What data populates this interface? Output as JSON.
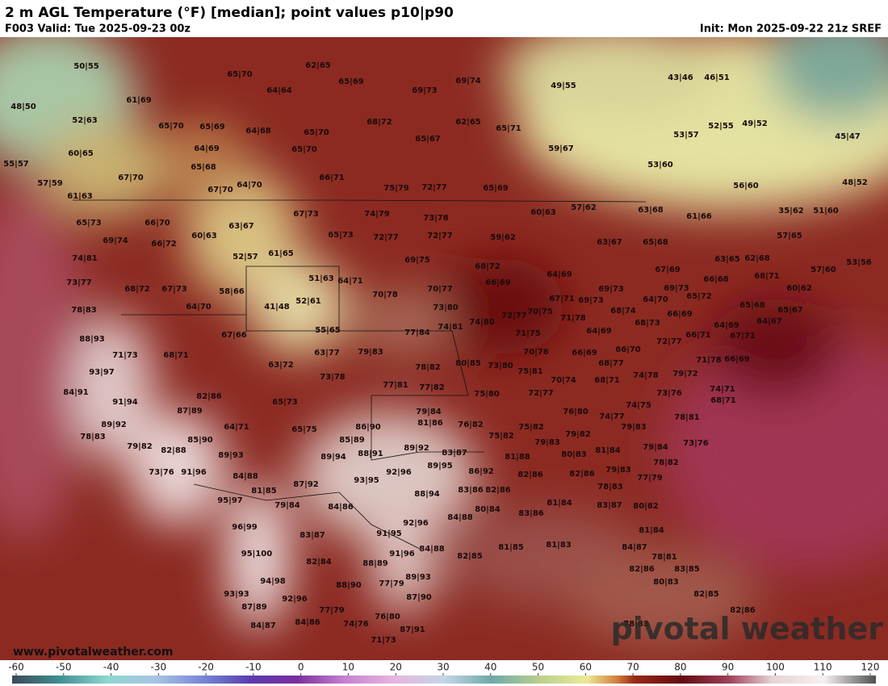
{
  "header": {
    "title": "2 m AGL Temperature (°F) [median]; point values p10|p90",
    "valid": "F003 Valid: Tue 2025-09-23 00z",
    "init": "Init: Mon 2025-09-22 21z SREF"
  },
  "map": {
    "point_values": [
      "50|55",
      "48|50",
      "52|63",
      "60|65",
      "55|57",
      "57|59",
      "61|63",
      "61|69",
      "65|70",
      "62|65",
      "65|69",
      "64|64",
      "69|74",
      "49|55",
      "69|73",
      "65|70",
      "65|69",
      "64|68",
      "65|70",
      "68|72",
      "65|67",
      "62|65",
      "65|71",
      "59|67",
      "43|46",
      "46|51",
      "52|55",
      "49|52",
      "45|47",
      "53|57",
      "53|60",
      "56|60",
      "48|52",
      "64|69",
      "65|70",
      "65|68",
      "67|70",
      "67|70",
      "64|70",
      "66|71",
      "75|79",
      "72|77",
      "65|69",
      "65|73",
      "66|70",
      "63|67",
      "67|73",
      "74|79",
      "73|78",
      "60|63",
      "57|62",
      "63|68",
      "61|66",
      "35|62",
      "51|60",
      "69|74",
      "66|72",
      "60|63",
      "65|73",
      "72|77",
      "72|77",
      "59|62",
      "63|67",
      "65|68",
      "57|65",
      "74|81",
      "52|57",
      "61|65",
      "69|75",
      "68|72",
      "64|69",
      "67|69",
      "63|65",
      "62|68",
      "53|56",
      "57|60",
      "73|77",
      "68|72",
      "67|73",
      "58|66",
      "51|63",
      "64|71",
      "66|69",
      "69|73",
      "69|73",
      "66|68",
      "68|71",
      "60|62",
      "70|78",
      "70|77",
      "67|71",
      "69|73",
      "64|70",
      "65|72",
      "78|83",
      "64|70",
      "41|48",
      "52|61",
      "73|80",
      "68|74",
      "66|69",
      "65|68",
      "65|67",
      "72|77",
      "70|75",
      "71|78",
      "74|80",
      "74|81",
      "55|65",
      "77|84",
      "68|73",
      "64|69",
      "64|67",
      "88|93",
      "67|66",
      "71|75",
      "64|69",
      "66|71",
      "72|77",
      "67|71",
      "71|73",
      "68|71",
      "63|77",
      "79|83",
      "70|76",
      "66|69",
      "66|70",
      "71|78",
      "66|69",
      "63|72",
      "78|82",
      "80|85",
      "73|80",
      "68|77",
      "93|97",
      "73|78",
      "75|81",
      "70|74",
      "68|71",
      "74|78",
      "79|72",
      "74|71",
      "84|91",
      "77|81",
      "77|82",
      "72|77",
      "73|76",
      "75|80",
      "82|86",
      "68|71",
      "91|94",
      "74|75",
      "65|73",
      "87|89",
      "79|84",
      "76|80",
      "74|77",
      "78|81",
      "81|86",
      "76|82",
      "64|71",
      "86|90",
      "75|82",
      "79|83",
      "89|92",
      "65|75",
      "79|82",
      "75|82",
      "79|83",
      "85|89",
      "85|90",
      "78|83",
      "81|84",
      "79|84",
      "73|76",
      "79|82",
      "82|88",
      "89|92",
      "88|91",
      "83|87",
      "89|94",
      "89|93",
      "81|88",
      "80|83",
      "78|82",
      "73|76",
      "91|96",
      "89|95",
      "92|96",
      "86|92",
      "82|86",
      "82|86",
      "79|83",
      "77|79",
      "84|88",
      "93|95",
      "87|92",
      "81|85",
      "83|86",
      "82|86",
      "78|83",
      "88|94",
      "95|97",
      "79|84",
      "84|86",
      "81|84",
      "83|87",
      "80|82",
      "80|84",
      "84|88",
      "83|86",
      "92|96",
      "96|99",
      "81|84",
      "83|87",
      "91|95",
      "95|100",
      "91|96",
      "84|88",
      "82|85",
      "81|85",
      "81|83",
      "84|87",
      "78|81",
      "82|84",
      "88|89",
      "82|86",
      "83|85",
      "89|93",
      "94|98",
      "88|90",
      "77|79",
      "80|83",
      "93|93",
      "87|90",
      "82|85",
      "92|96",
      "87|89",
      "77|79",
      "82|86",
      "76|80",
      "84|87",
      "84|86",
      "74|76",
      "78|83",
      "87|91",
      "71|73"
    ]
  },
  "footer": {
    "site": "www.pivotalweather.com",
    "logo": "pivotal weather"
  },
  "colorbar": {
    "ticks": [
      -60,
      -50,
      -40,
      -30,
      -20,
      -10,
      0,
      10,
      20,
      30,
      40,
      50,
      60,
      70,
      80,
      90,
      100,
      110,
      120
    ]
  }
}
